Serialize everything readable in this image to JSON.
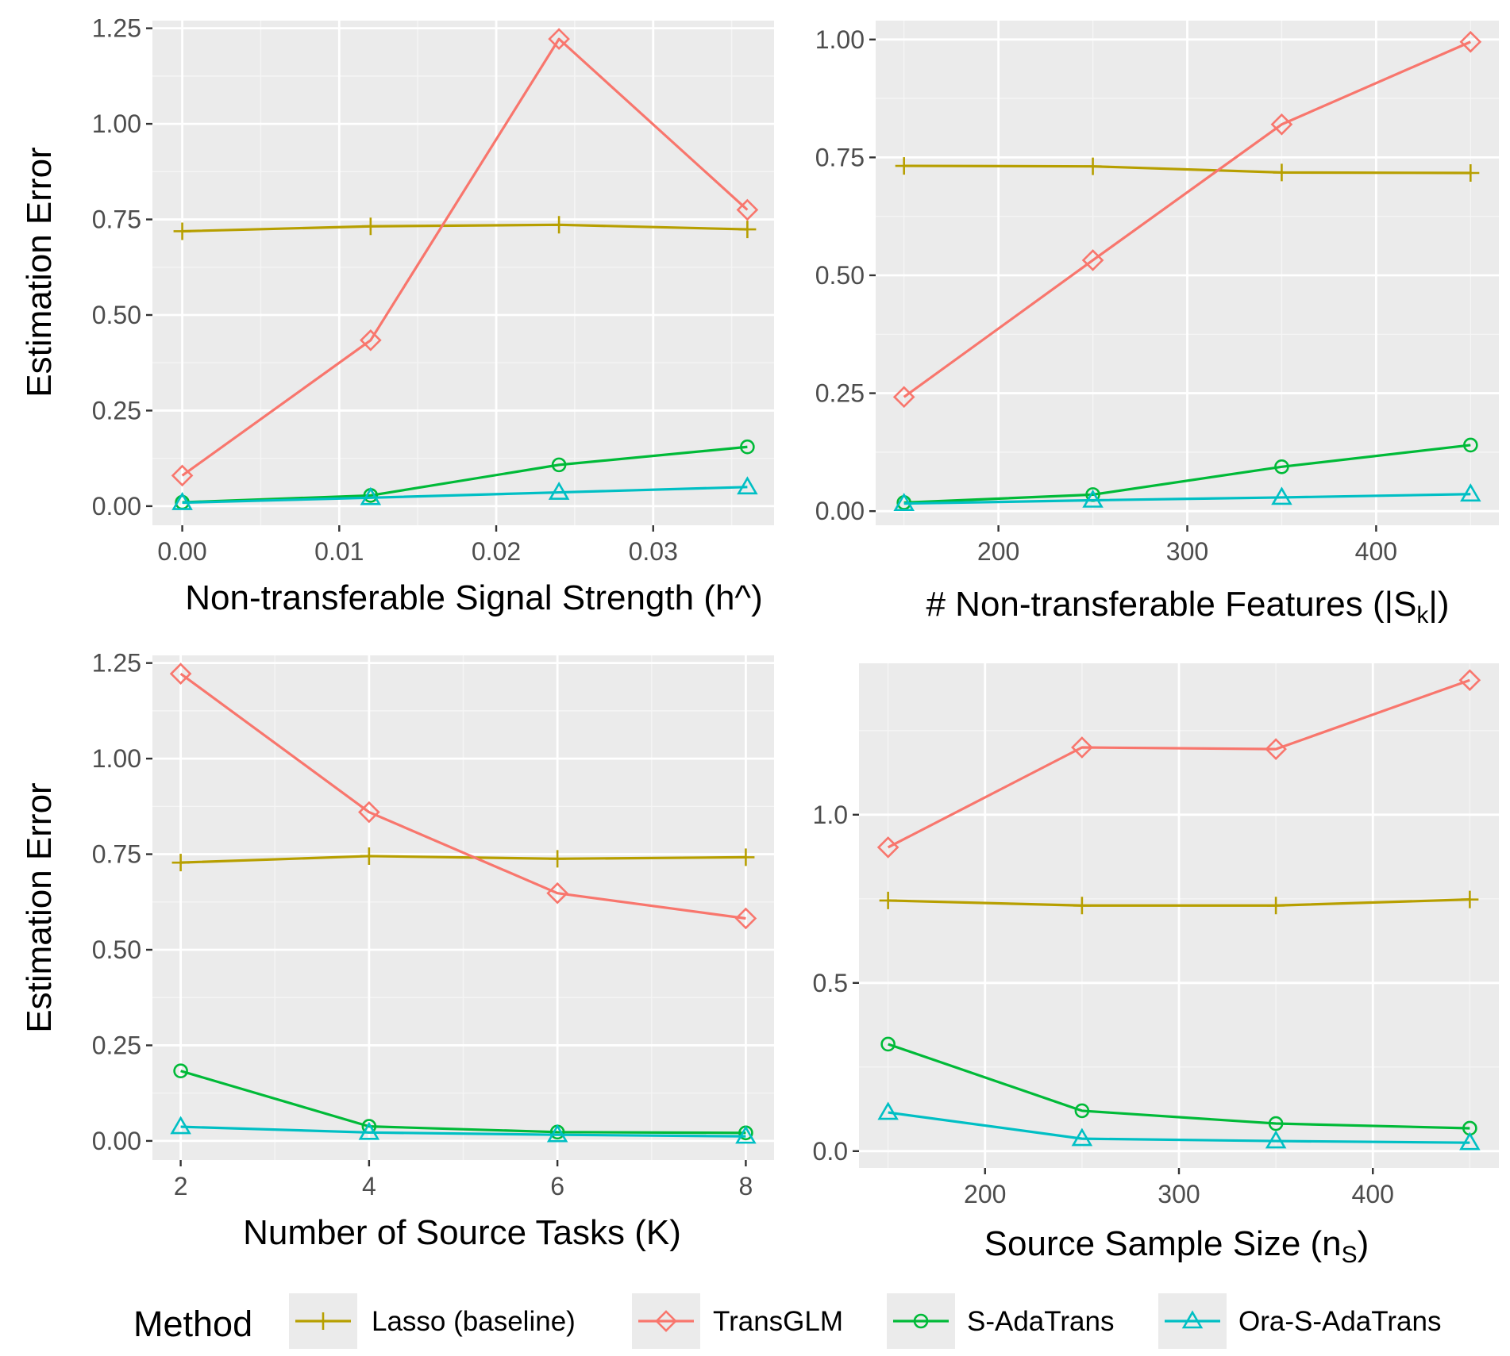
{
  "colors": {
    "panel_bg": "#EBEBEB",
    "grid_major": "#FFFFFF",
    "grid_minor": "#F5F5F5",
    "tick_text": "#4D4D4D",
    "lasso": "#B79F00",
    "transglm": "#F8766D",
    "s_adatrans": "#00BA38",
    "ora_s_adatrans": "#00BFC4"
  },
  "legend": {
    "title": "Method",
    "items": [
      {
        "label": "Lasso (baseline)",
        "color": "#B79F00",
        "marker": "plus"
      },
      {
        "label": "TransGLM",
        "color": "#F8766D",
        "marker": "diamond"
      },
      {
        "label": "S-AdaTrans",
        "color": "#00BA38",
        "marker": "circle"
      },
      {
        "label": "Ora-S-AdaTrans",
        "color": "#00BFC4",
        "marker": "triangle"
      }
    ],
    "position": "bottom"
  },
  "chart_data": [
    {
      "type": "line",
      "ylabel": "Estimation Error",
      "xlabel": "Non-transferable Signal Strength (h^)",
      "x": [
        0,
        0.012,
        0.024,
        0.036
      ],
      "xlim": [
        -0.0019,
        0.0377
      ],
      "xticks": [
        0,
        0.01,
        0.02,
        0.03
      ],
      "xtick_labels": [
        "0.00",
        "0.01",
        "0.02",
        "0.03"
      ],
      "ylim": [
        -0.05,
        1.27
      ],
      "yticks": [
        0,
        0.25,
        0.5,
        0.75,
        1.0,
        1.25
      ],
      "ytick_labels": [
        "0.00",
        "0.25",
        "0.50",
        "0.75",
        "1.00",
        "1.25"
      ],
      "grid": true,
      "series": [
        {
          "name": "Lasso (baseline)",
          "marker": "plus",
          "values": [
            0.719,
            0.732,
            0.736,
            0.724
          ]
        },
        {
          "name": "TransGLM",
          "marker": "diamond",
          "values": [
            0.08,
            0.434,
            1.222,
            0.775
          ]
        },
        {
          "name": "S-AdaTrans",
          "marker": "circle",
          "values": [
            0.01,
            0.028,
            0.108,
            0.155
          ]
        },
        {
          "name": "Ora-S-AdaTrans",
          "marker": "triangle",
          "values": [
            0.009,
            0.022,
            0.036,
            0.05
          ]
        }
      ]
    },
    {
      "type": "line",
      "ylabel": "",
      "xlabel": "# Non-transferable Features (|S",
      "xlabel_sub": "k",
      "xlabel_after": "|)",
      "x": [
        150,
        250,
        350,
        450
      ],
      "xlim": [
        135,
        465
      ],
      "xticks": [
        200,
        300,
        400
      ],
      "xtick_labels": [
        "200",
        "300",
        "400"
      ],
      "ylim": [
        -0.03,
        1.04
      ],
      "yticks": [
        0,
        0.25,
        0.5,
        0.75,
        1.0
      ],
      "ytick_labels": [
        "0.00",
        "0.25",
        "0.50",
        "0.75",
        "1.00"
      ],
      "grid": true,
      "series": [
        {
          "name": "Lasso (baseline)",
          "marker": "plus",
          "values": [
            0.732,
            0.731,
            0.718,
            0.717
          ]
        },
        {
          "name": "TransGLM",
          "marker": "diamond",
          "values": [
            0.242,
            0.532,
            0.82,
            0.995
          ]
        },
        {
          "name": "S-AdaTrans",
          "marker": "circle",
          "values": [
            0.018,
            0.035,
            0.094,
            0.14
          ]
        },
        {
          "name": "Ora-S-AdaTrans",
          "marker": "triangle",
          "values": [
            0.016,
            0.023,
            0.029,
            0.036
          ]
        }
      ]
    },
    {
      "type": "line",
      "ylabel": "Estimation Error",
      "xlabel": "Number of Source Tasks (K)",
      "x": [
        2,
        4,
        6,
        8
      ],
      "xlim": [
        1.7,
        8.3
      ],
      "xticks": [
        2,
        4,
        6,
        8
      ],
      "xtick_labels": [
        "2",
        "4",
        "6",
        "8"
      ],
      "ylim": [
        -0.05,
        1.27
      ],
      "yticks": [
        0,
        0.25,
        0.5,
        0.75,
        1.0,
        1.25
      ],
      "ytick_labels": [
        "0.00",
        "0.25",
        "0.50",
        "0.75",
        "1.00",
        "1.25"
      ],
      "grid": true,
      "series": [
        {
          "name": "Lasso (baseline)",
          "marker": "plus",
          "values": [
            0.728,
            0.745,
            0.738,
            0.742
          ]
        },
        {
          "name": "TransGLM",
          "marker": "diamond",
          "values": [
            1.222,
            0.86,
            0.648,
            0.582
          ]
        },
        {
          "name": "S-AdaTrans",
          "marker": "circle",
          "values": [
            0.183,
            0.038,
            0.023,
            0.021
          ]
        },
        {
          "name": "Ora-S-AdaTrans",
          "marker": "triangle",
          "values": [
            0.037,
            0.022,
            0.016,
            0.012
          ]
        }
      ]
    },
    {
      "type": "line",
      "ylabel": "",
      "xlabel": "Source Sample Size (n",
      "xlabel_sub": "S",
      "xlabel_after": ")",
      "x": [
        150,
        250,
        350,
        450
      ],
      "xlim": [
        135,
        465
      ],
      "xticks": [
        200,
        300,
        400
      ],
      "xtick_labels": [
        "200",
        "300",
        "400"
      ],
      "ylim": [
        -0.05,
        1.45
      ],
      "yticks": [
        0,
        0.5,
        1.0
      ],
      "ytick_labels": [
        "0.0",
        "0.5",
        "1.0"
      ],
      "grid": true,
      "series": [
        {
          "name": "Lasso (baseline)",
          "marker": "plus",
          "values": [
            0.745,
            0.73,
            0.73,
            0.748
          ]
        },
        {
          "name": "TransGLM",
          "marker": "diamond",
          "values": [
            0.903,
            1.2,
            1.195,
            1.4
          ]
        },
        {
          "name": "S-AdaTrans",
          "marker": "circle",
          "values": [
            0.318,
            0.12,
            0.082,
            0.068
          ]
        },
        {
          "name": "Ora-S-AdaTrans",
          "marker": "triangle",
          "values": [
            0.115,
            0.037,
            0.03,
            0.025
          ]
        }
      ]
    }
  ]
}
